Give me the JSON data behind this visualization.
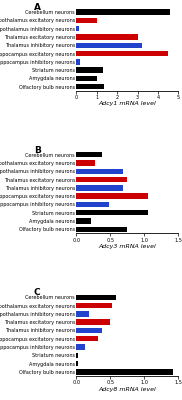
{
  "panel_A": {
    "label": "A",
    "categories": [
      "Cerebellum neurons",
      "Hypothalamus excitatory neurons",
      "Hypothalamus inhibitory neurons",
      "Thalamus excitatory neurons",
      "Thalamus inhibitory neurons",
      "Hippocampus excitatory neurons",
      "Hippocampus inhibitory neurons",
      "Striatum neurons",
      "Amygdala neurons",
      "Olfactory bulb neurons"
    ],
    "values": [
      4.6,
      1.0,
      0.15,
      3.0,
      3.2,
      4.5,
      0.18,
      1.3,
      1.0,
      1.35
    ],
    "colors": [
      "#000000",
      "#cc0000",
      "#2244cc",
      "#cc0000",
      "#2244cc",
      "#cc0000",
      "#2244cc",
      "#000000",
      "#000000",
      "#000000"
    ],
    "xlabel": "Adcy1 mRNA level",
    "xlim": [
      0,
      5
    ],
    "xticks": [
      0,
      1,
      2,
      3,
      4,
      5
    ]
  },
  "panel_B": {
    "label": "B",
    "categories": [
      "Cerebellum neurons",
      "Hypothalamus excitatory neurons",
      "Hypothalamus inhibitory neurons",
      "Thalamus excitatory neurons",
      "Thalamus inhibitory neurons",
      "Hippocampus excitatory neurons",
      "Hippocampus inhibitory neurons",
      "Striatum neurons",
      "Amygdala neurons",
      "Olfactory bulb neurons"
    ],
    "values": [
      0.38,
      0.28,
      0.68,
      0.75,
      0.68,
      1.05,
      0.48,
      1.05,
      0.22,
      0.75
    ],
    "colors": [
      "#000000",
      "#cc0000",
      "#2244cc",
      "#cc0000",
      "#2244cc",
      "#cc0000",
      "#2244cc",
      "#000000",
      "#000000",
      "#000000"
    ],
    "xlabel": "Adcy3 mRNA level",
    "xlim": [
      0,
      1.5
    ],
    "xticks": [
      0.0,
      0.5,
      1.0,
      1.5
    ]
  },
  "panel_C": {
    "label": "C",
    "categories": [
      "Cerebellum neurons",
      "Hypothalamus excitatory neurons",
      "Hypothalamus inhibitory neurons",
      "Thalamus excitatory neurons",
      "Thalamus inhibitory neurons",
      "Hippocampus excitatory neurons",
      "Hippocampus inhibitory neurons",
      "Striatum neurons",
      "Amygdala neurons",
      "Olfactory bulb neurons"
    ],
    "values": [
      0.58,
      0.52,
      0.18,
      0.5,
      0.38,
      0.32,
      0.12,
      0.02,
      0.02,
      1.42
    ],
    "colors": [
      "#000000",
      "#cc0000",
      "#2244cc",
      "#cc0000",
      "#2244cc",
      "#cc0000",
      "#2244cc",
      "#000000",
      "#000000",
      "#000000"
    ],
    "xlabel": "Adcy8 mRNA level",
    "xlim": [
      0,
      1.5
    ],
    "xticks": [
      0.0,
      0.5,
      1.0,
      1.5
    ]
  },
  "bg_color": "#ffffff",
  "bar_height": 0.65,
  "label_fontsize": 3.5,
  "tick_fontsize": 3.6,
  "xlabel_fontsize": 4.5,
  "panel_label_fontsize": 6.5
}
